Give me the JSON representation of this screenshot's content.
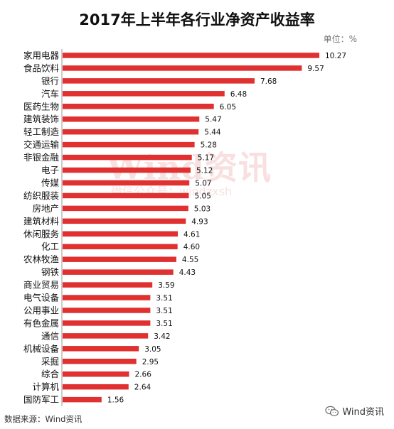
{
  "title": "2017年上半年各行业净资产收益率",
  "unit": "单位：%",
  "watermark": {
    "main": "Wind资讯",
    "sub": "微信公众号：windzxsh"
  },
  "source": "数据来源：Wind资讯",
  "brand": {
    "label": "Wind资讯",
    "icon": "wechat-icon"
  },
  "colors": {
    "bar": "#e03030"
  },
  "chart_data": {
    "type": "bar",
    "orientation": "horizontal",
    "title": "2017年上半年各行业净资产收益率",
    "unit": "单位：%",
    "categories": [
      "家用电器",
      "食品饮料",
      "银行",
      "汽车",
      "医药生物",
      "建筑装饰",
      "轻工制造",
      "交通运输",
      "非银金融",
      "电子",
      "传媒",
      "纺织服装",
      "房地产",
      "建筑材料",
      "休闲服务",
      "化工",
      "农林牧渔",
      "钢铁",
      "商业贸易",
      "电气设备",
      "公用事业",
      "有色金属",
      "通信",
      "机械设备",
      "采掘",
      "综合",
      "计算机",
      "国防军工"
    ],
    "values": [
      10.27,
      9.57,
      7.68,
      6.48,
      6.05,
      5.47,
      5.44,
      5.28,
      5.17,
      5.12,
      5.07,
      5.05,
      5.03,
      4.93,
      4.61,
      4.6,
      4.55,
      4.43,
      3.59,
      3.51,
      3.51,
      3.51,
      3.42,
      3.05,
      2.95,
      2.66,
      2.64,
      1.56
    ],
    "labels": [
      "10.27",
      "9.57",
      "7.68",
      "6.48",
      "6.05",
      "5.47",
      "5.44",
      "5.28",
      "5.17",
      "5.12",
      "5.07",
      "5.05",
      "5.03",
      "4.93",
      "4.61",
      "4.60",
      "4.55",
      "4.43",
      "3.59",
      "3.51",
      "3.51",
      "3.51",
      "3.42",
      "3.05",
      "2.95",
      "2.66",
      "2.64",
      "1.56"
    ],
    "xlim": [
      0,
      10.27
    ],
    "grid": false,
    "legend": "none"
  }
}
